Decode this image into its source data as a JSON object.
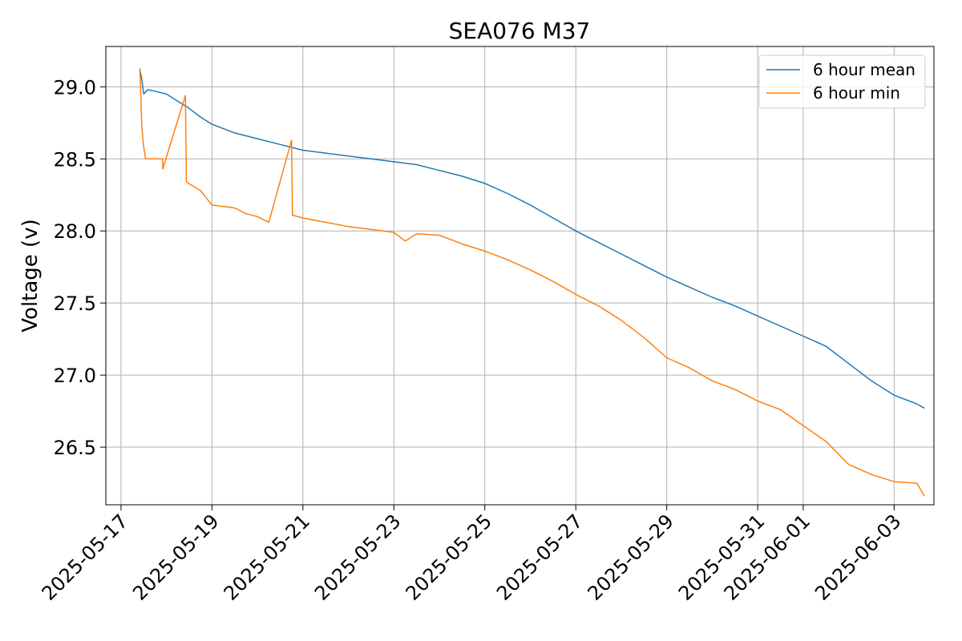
{
  "chart_data": {
    "type": "line",
    "title": "SEA076 M37",
    "xlabel": "",
    "ylabel": "Voltage (v)",
    "grid": true,
    "legend_position": "top-right",
    "x_tick_labels": [
      "2025-05-17",
      "2025-05-19",
      "2025-05-21",
      "2025-05-23",
      "2025-05-25",
      "2025-05-27",
      "2025-05-29",
      "2025-05-31",
      "2025-06-01",
      "2025-06-03"
    ],
    "y_tick_labels": [
      "26.5",
      "27.0",
      "27.5",
      "28.0",
      "28.5",
      "29.0"
    ],
    "y_ticks": [
      26.5,
      27.0,
      27.5,
      28.0,
      28.5,
      29.0
    ],
    "ylim": [
      26.1,
      29.28
    ],
    "xlim": [
      "2025-05-16T16:00",
      "2025-06-03T21:00"
    ],
    "series": [
      {
        "name": "6 hour mean",
        "color": "#1f77b4",
        "points": [
          [
            "2025-05-17T10:00",
            29.12
          ],
          [
            "2025-05-17T11:00",
            29.05
          ],
          [
            "2025-05-17T12:00",
            28.95
          ],
          [
            "2025-05-17T14:00",
            28.98
          ],
          [
            "2025-05-17T18:00",
            28.97
          ],
          [
            "2025-05-18T00:00",
            28.95
          ],
          [
            "2025-05-18T06:00",
            28.9
          ],
          [
            "2025-05-18T12:00",
            28.85
          ],
          [
            "2025-05-18T18:00",
            28.79
          ],
          [
            "2025-05-19T00:00",
            28.74
          ],
          [
            "2025-05-19T12:00",
            28.68
          ],
          [
            "2025-05-20T00:00",
            28.64
          ],
          [
            "2025-05-20T12:00",
            28.6
          ],
          [
            "2025-05-21T00:00",
            28.56
          ],
          [
            "2025-05-21T12:00",
            28.54
          ],
          [
            "2025-05-22T00:00",
            28.52
          ],
          [
            "2025-05-22T12:00",
            28.5
          ],
          [
            "2025-05-23T00:00",
            28.48
          ],
          [
            "2025-05-23T12:00",
            28.46
          ],
          [
            "2025-05-24T00:00",
            28.42
          ],
          [
            "2025-05-24T12:00",
            28.38
          ],
          [
            "2025-05-25T00:00",
            28.33
          ],
          [
            "2025-05-25T12:00",
            28.26
          ],
          [
            "2025-05-26T00:00",
            28.18
          ],
          [
            "2025-05-26T12:00",
            28.09
          ],
          [
            "2025-05-27T00:00",
            28.0
          ],
          [
            "2025-05-27T12:00",
            27.92
          ],
          [
            "2025-05-28T00:00",
            27.84
          ],
          [
            "2025-05-28T12:00",
            27.76
          ],
          [
            "2025-05-29T00:00",
            27.68
          ],
          [
            "2025-05-29T12:00",
            27.61
          ],
          [
            "2025-05-30T00:00",
            27.54
          ],
          [
            "2025-05-30T12:00",
            27.48
          ],
          [
            "2025-05-31T00:00",
            27.41
          ],
          [
            "2025-05-31T12:00",
            27.34
          ],
          [
            "2025-06-01T00:00",
            27.27
          ],
          [
            "2025-06-01T12:00",
            27.2
          ],
          [
            "2025-06-02T00:00",
            27.08
          ],
          [
            "2025-06-02T12:00",
            26.96
          ],
          [
            "2025-06-03T00:00",
            26.86
          ],
          [
            "2025-06-03T12:00",
            26.8
          ],
          [
            "2025-06-03T16:00",
            26.77
          ]
        ]
      },
      {
        "name": "6 hour min",
        "color": "#ff7f0e",
        "points": [
          [
            "2025-05-17T10:00",
            29.13
          ],
          [
            "2025-05-17T11:00",
            28.72
          ],
          [
            "2025-05-17T12:00",
            28.58
          ],
          [
            "2025-05-17T13:00",
            28.5
          ],
          [
            "2025-05-17T22:00",
            28.5
          ],
          [
            "2025-05-17T22:01",
            28.43
          ],
          [
            "2025-05-18T10:00",
            28.94
          ],
          [
            "2025-05-18T10:30",
            28.34
          ],
          [
            "2025-05-18T18:00",
            28.28
          ],
          [
            "2025-05-19T00:00",
            28.18
          ],
          [
            "2025-05-19T12:00",
            28.16
          ],
          [
            "2025-05-19T18:00",
            28.12
          ],
          [
            "2025-05-20T00:00",
            28.1
          ],
          [
            "2025-05-20T06:00",
            28.06
          ],
          [
            "2025-05-20T18:00",
            28.63
          ],
          [
            "2025-05-20T18:30",
            28.11
          ],
          [
            "2025-05-21T00:00",
            28.09
          ],
          [
            "2025-05-21T12:00",
            28.06
          ],
          [
            "2025-05-22T00:00",
            28.03
          ],
          [
            "2025-05-22T12:00",
            28.01
          ],
          [
            "2025-05-23T00:00",
            27.99
          ],
          [
            "2025-05-23T06:00",
            27.93
          ],
          [
            "2025-05-23T12:00",
            27.98
          ],
          [
            "2025-05-24T00:00",
            27.97
          ],
          [
            "2025-05-24T12:00",
            27.91
          ],
          [
            "2025-05-25T00:00",
            27.86
          ],
          [
            "2025-05-25T12:00",
            27.8
          ],
          [
            "2025-05-26T00:00",
            27.73
          ],
          [
            "2025-05-26T12:00",
            27.65
          ],
          [
            "2025-05-27T00:00",
            27.56
          ],
          [
            "2025-05-27T12:00",
            27.48
          ],
          [
            "2025-05-28T00:00",
            27.38
          ],
          [
            "2025-05-28T12:00",
            27.26
          ],
          [
            "2025-05-29T00:00",
            27.12
          ],
          [
            "2025-05-29T12:00",
            27.05
          ],
          [
            "2025-05-30T00:00",
            26.96
          ],
          [
            "2025-05-30T12:00",
            26.9
          ],
          [
            "2025-05-31T00:00",
            26.82
          ],
          [
            "2025-05-31T12:00",
            26.76
          ],
          [
            "2025-06-01T00:00",
            26.65
          ],
          [
            "2025-06-01T12:00",
            26.54
          ],
          [
            "2025-06-02T00:00",
            26.38
          ],
          [
            "2025-06-02T12:00",
            26.31
          ],
          [
            "2025-06-03T00:00",
            26.26
          ],
          [
            "2025-06-03T12:00",
            26.25
          ],
          [
            "2025-06-03T16:00",
            26.16
          ]
        ]
      }
    ]
  }
}
